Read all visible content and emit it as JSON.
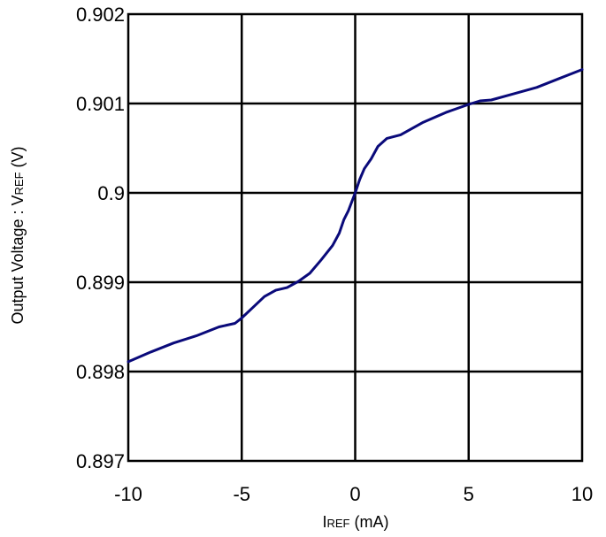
{
  "chart_data": {
    "type": "line",
    "title": "",
    "xlabel": {
      "main": "I",
      "sub": "REF",
      "suffix": " (mA)"
    },
    "ylabel": {
      "prefix": "Output Voltage : V",
      "sub": "REF",
      "suffix": " (V)"
    },
    "xlim": [
      -10,
      10
    ],
    "ylim": [
      0.897,
      0.902
    ],
    "xticks": [
      -10,
      -5,
      0,
      5,
      10
    ],
    "xtick_labels": [
      "-10",
      "-5",
      "0",
      "5",
      "10"
    ],
    "yticks": [
      0.897,
      0.898,
      0.899,
      0.9,
      0.901,
      0.902
    ],
    "ytick_labels": [
      "0.897",
      "0.898",
      "0.899",
      "0.9",
      "0.901",
      "0.902"
    ],
    "grid": true,
    "line_color": "#0a0a7a",
    "series": [
      {
        "x": [
          -10,
          -9,
          -8,
          -7,
          -6,
          -5.3,
          -5,
          -4.5,
          -4,
          -3.5,
          -3,
          -2.5,
          -2,
          -1.5,
          -1,
          -0.7,
          -0.5,
          -0.3,
          0,
          0.2,
          0.4,
          0.7,
          1,
          1.4,
          2,
          3,
          4,
          5,
          5.5,
          6,
          7,
          8,
          9,
          10
        ],
        "y": [
          0.89811,
          0.89822,
          0.89832,
          0.8984,
          0.8985,
          0.89854,
          0.8986,
          0.89872,
          0.89884,
          0.89891,
          0.89894,
          0.89901,
          0.8991,
          0.89925,
          0.89941,
          0.89955,
          0.8997,
          0.8998,
          0.9,
          0.90015,
          0.90027,
          0.90038,
          0.90052,
          0.90061,
          0.90065,
          0.90079,
          0.9009,
          0.90099,
          0.90103,
          0.90104,
          0.90111,
          0.90118,
          0.90128,
          0.90138
        ]
      }
    ]
  }
}
